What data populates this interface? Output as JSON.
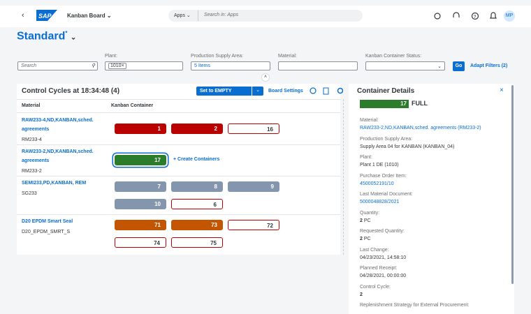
{
  "shell": {
    "title": "Kanban Board",
    "search_scope": "Apps",
    "search_placeholder": "Search in: Apps",
    "avatar": "MP"
  },
  "page": {
    "variant": "Standard",
    "variant_modified": "*"
  },
  "filters": {
    "search_placeholder": "Search",
    "plant": {
      "label": "Plant:",
      "token": "1010"
    },
    "supply_area": {
      "label": "Production Supply Area:",
      "value": "5 Items"
    },
    "material": {
      "label": "Material:"
    },
    "status": {
      "label": "Kanban Container Status:"
    },
    "go": "Go",
    "adapt": "Adapt Filters (2)"
  },
  "board": {
    "title": "Control Cycles at 18:34:48 (4)",
    "action": "Set to EMPTY",
    "settings": "Board Settings",
    "columns": [
      "Material",
      "Kanban Container"
    ],
    "rows": [
      {
        "name": "RAW233-4,ND,KANBAN,sched. agreements",
        "id": "RM233-4",
        "containers": [
          {
            "number": 1,
            "color": "#bb0000"
          },
          {
            "number": 2,
            "color": "#bb0000"
          },
          {
            "number": 16,
            "color": "#bb0000",
            "outline": true
          }
        ]
      },
      {
        "name": "RAW233-2,ND,KANBAN,sched. agreements",
        "id": "RM233-2",
        "containers": [
          {
            "number": 17,
            "color": "#2b7d2b",
            "selected": true
          }
        ],
        "create": "Create Containers"
      },
      {
        "name": "SEMI233,PD,KANBAN, REM",
        "id": "SG233",
        "containers": [
          {
            "number": 7,
            "color": "#8396ad"
          },
          {
            "number": 8,
            "color": "#8396ad"
          },
          {
            "number": 9,
            "color": "#8396ad"
          },
          {
            "number": 10,
            "color": "#8396ad"
          },
          {
            "number": 6,
            "color": "#bb0000",
            "outline": true
          }
        ]
      },
      {
        "name": "D20 EPDM Smart Seal",
        "id": "D20_EPDM_SMRT_S",
        "containers": [
          {
            "number": 71,
            "color": "#c35500"
          },
          {
            "number": 73,
            "color": "#c35500"
          },
          {
            "number": 72,
            "color": "#bb0000",
            "outline": true
          },
          {
            "number": 74,
            "color": "#bb0000",
            "outline": true
          },
          {
            "number": 75,
            "color": "#bb0000",
            "outline": true
          }
        ]
      }
    ]
  },
  "details": {
    "title": "Container Details",
    "status_count": 17,
    "status_color": "#2b7d2b",
    "status_label": "FULL",
    "fields": [
      {
        "label": "Material:",
        "value": "RAW233-2,ND,KANBAN,sched. agreements (RM233-2)",
        "link": true
      },
      {
        "label": "Production Supply Area:",
        "value": "Supply Area 04 for KANBAN (KANBAN_04)"
      },
      {
        "label": "Plant:",
        "value": "Plant 1 DE (1010)"
      },
      {
        "label": "Purchase Order Item:",
        "value": "4500052191/10",
        "link": true
      },
      {
        "label": "Last Material Document:",
        "value": "5000048828/2021",
        "link": true
      },
      {
        "label": "Quantity:",
        "value": 2,
        "unit": "PC"
      },
      {
        "label": "Requested Quantity:",
        "value": 2,
        "unit": "PC"
      },
      {
        "label": "Last Change:",
        "value": "04/23/2021, 14:58:10"
      },
      {
        "label": "Planned Receipt:",
        "value": "04/28/2021, 00:00:00"
      },
      {
        "label": "Control Cycle:",
        "value": 2
      },
      {
        "label": "Replenishment Strategy for External Procurement:"
      }
    ]
  }
}
